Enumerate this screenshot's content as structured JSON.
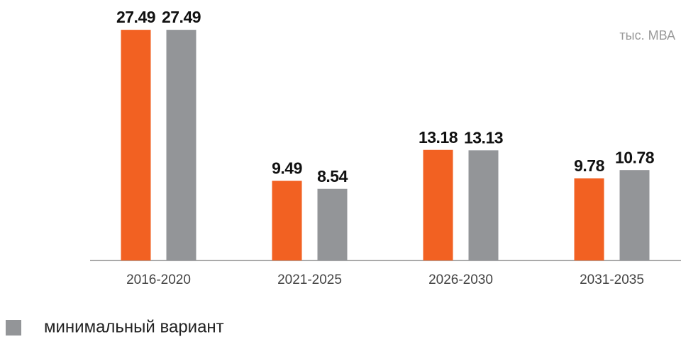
{
  "chart_data": {
    "type": "bar",
    "annotation": "тыс. МВА",
    "categories": [
      "2016-2020",
      "2021-2025",
      "2026-2030",
      "2031-2035"
    ],
    "series": [
      {
        "color": "#f26122",
        "values": [
          27.49,
          9.49,
          13.18,
          9.78
        ]
      },
      {
        "name": "минимальный вариант",
        "color": "#939598",
        "values": [
          27.49,
          8.54,
          13.13,
          10.78
        ]
      }
    ],
    "ylim": [
      0,
      27.5
    ]
  }
}
